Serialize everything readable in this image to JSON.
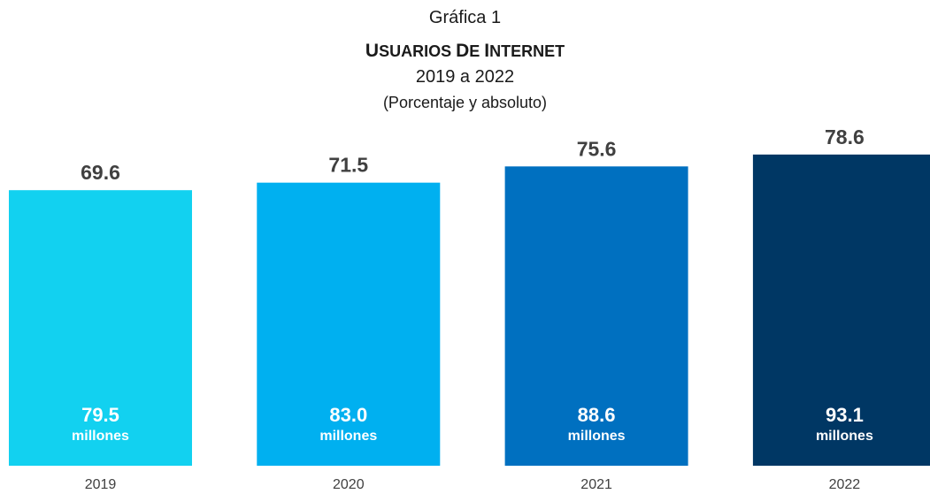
{
  "header": {
    "line1": "Gráfica 1",
    "title": "USUARIOS DE INTERNET",
    "years": "2019 a 2022",
    "subtitle": "(Porcentaje y absoluto)"
  },
  "chart_data": {
    "type": "bar",
    "categories": [
      "2019",
      "2020",
      "2021",
      "2022"
    ],
    "values": [
      69.6,
      71.5,
      75.6,
      78.6
    ],
    "value_labels": [
      "69.6",
      "71.5",
      "75.6",
      "78.6"
    ],
    "inner_values": [
      "79.5",
      "83.0",
      "88.6",
      "93.1"
    ],
    "inner_unit": "millones",
    "colors": [
      "#12D1F0",
      "#00B0F0",
      "#0070C0",
      "#003764"
    ],
    "value_label_color": "#404040",
    "inner_label_color": "#ffffff",
    "tick_color": "#404040",
    "ylim": [
      0,
      80
    ],
    "grid": false,
    "legend": "none"
  }
}
